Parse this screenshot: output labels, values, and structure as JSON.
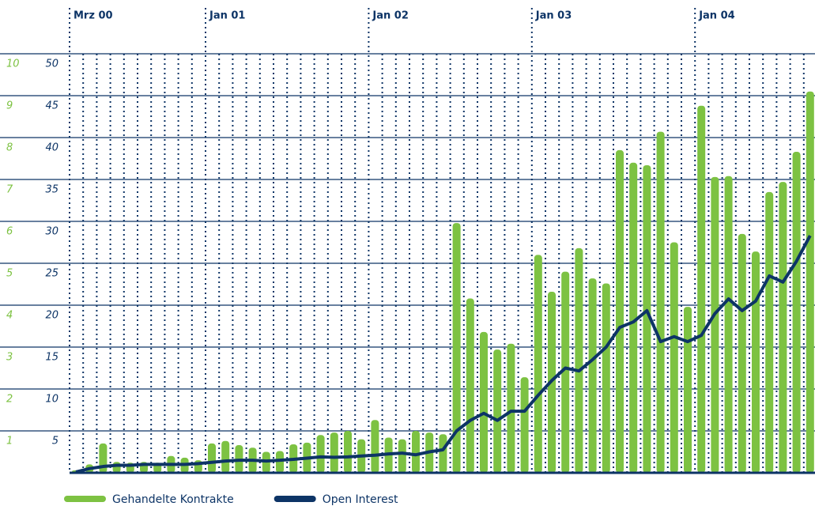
{
  "chart_data": {
    "type": "bar",
    "categories": [
      "Mrz 00",
      null,
      null,
      null,
      null,
      null,
      null,
      null,
      null,
      null,
      "Jan 01",
      null,
      null,
      null,
      null,
      null,
      null,
      null,
      null,
      null,
      null,
      null,
      "Jan 02",
      null,
      null,
      null,
      null,
      null,
      null,
      null,
      null,
      null,
      null,
      null,
      "Jan 03",
      null,
      null,
      null,
      null,
      null,
      null,
      null,
      null,
      null,
      null,
      null,
      "Jan 04",
      null,
      null,
      null,
      null,
      null,
      null,
      null,
      null
    ],
    "series": [
      {
        "name": "Gehandelte Kontrakte",
        "color": "#7dc242",
        "type": "bar",
        "values": [
          0.3,
          1,
          3.5,
          1.3,
          1.2,
          1.3,
          1.2,
          2,
          1.8,
          1.5,
          3.5,
          3.8,
          3.3,
          3,
          2.5,
          2.6,
          3.4,
          3.6,
          4.5,
          4.8,
          5,
          4,
          6.3,
          4.2,
          4,
          5,
          4.8,
          4.6,
          29.8,
          20.8,
          16.8,
          14.7,
          15.4,
          11.4,
          26,
          21.6,
          24,
          26.8,
          23.2,
          22.6,
          38.5,
          37,
          36.7,
          40.7,
          27.5,
          19.8,
          43.8,
          35.3,
          35.4,
          28.5,
          26.4,
          33.5,
          34.7,
          38.3,
          45.5
        ]
      },
      {
        "name": "Open Interest",
        "color": "#0d3466",
        "type": "line",
        "axis": "y2",
        "values": [
          0.02,
          0.1,
          0.15,
          0.18,
          0.18,
          0.2,
          0.2,
          0.2,
          0.2,
          0.22,
          0.25,
          0.28,
          0.3,
          0.3,
          0.28,
          0.3,
          0.32,
          0.35,
          0.38,
          0.37,
          0.38,
          0.4,
          0.42,
          0.45,
          0.47,
          0.43,
          0.5,
          0.55,
          1.0,
          1.25,
          1.42,
          1.25,
          1.47,
          1.47,
          1.85,
          2.2,
          2.5,
          2.43,
          2.7,
          3.0,
          3.47,
          3.6,
          3.87,
          3.13,
          3.25,
          3.13,
          3.28,
          3.8,
          4.15,
          3.87,
          4.1,
          4.7,
          4.55,
          5.05,
          5.66
        ]
      }
    ],
    "ylim": [
      0,
      50
    ],
    "yticks": [
      5,
      10,
      15,
      20,
      25,
      30,
      35,
      40,
      45,
      50
    ],
    "y2lim": [
      0,
      10
    ],
    "y2ticks": [
      1,
      2,
      3,
      4,
      5,
      6,
      7,
      8,
      9,
      10
    ],
    "grid": true,
    "legend": "bottom"
  }
}
